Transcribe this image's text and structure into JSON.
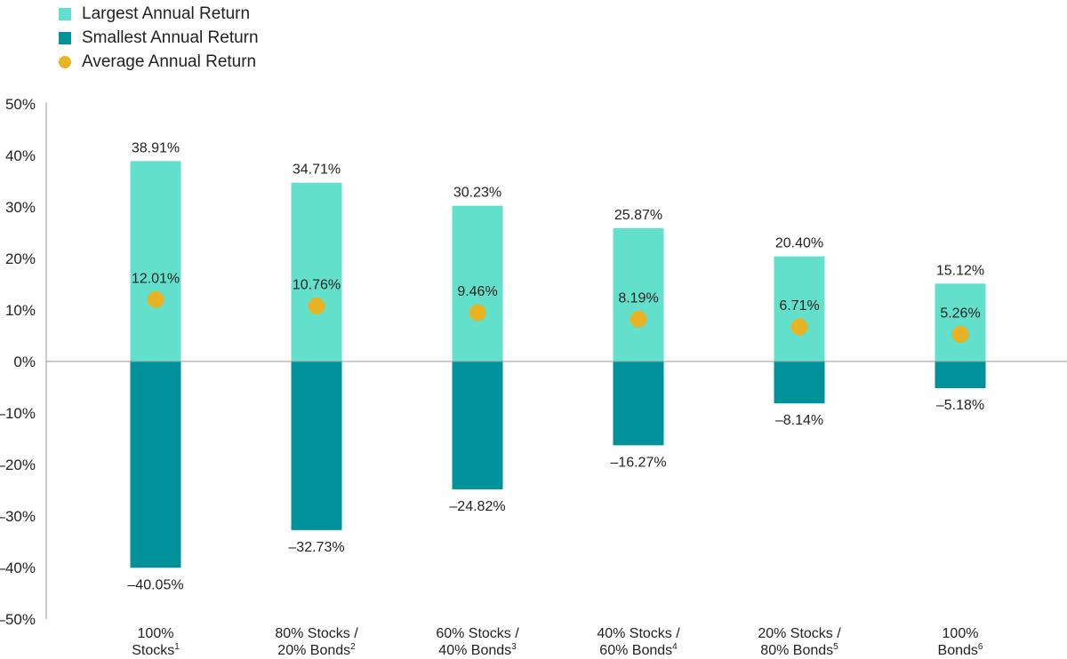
{
  "legend": {
    "largest_label": "Largest Annual Return",
    "smallest_label": "Smallest Annual Return",
    "average_label": "Average Annual Return"
  },
  "colors": {
    "largest": "#62e0cb",
    "smallest": "#00929b",
    "average": "#e8b324",
    "axis": "#999999"
  },
  "chart_data": {
    "type": "bar",
    "ylim": [
      -50,
      50
    ],
    "yticks": [
      50,
      40,
      30,
      20,
      10,
      0,
      -10,
      -20,
      -30,
      -40,
      -50
    ],
    "ytick_labels": [
      "50%",
      "40%",
      "30%",
      "20%",
      "10%",
      "0%",
      "–10%",
      "–20%",
      "–30%",
      "–40%",
      "–50%"
    ],
    "categories": [
      {
        "line1": "100%",
        "line2": "Stocks",
        "sup": "1"
      },
      {
        "line1": "80% Stocks /",
        "line2": "20% Bonds",
        "sup": "2"
      },
      {
        "line1": "60% Stocks /",
        "line2": "40% Bonds",
        "sup": "3"
      },
      {
        "line1": "40% Stocks /",
        "line2": "60% Bonds",
        "sup": "4"
      },
      {
        "line1": "20% Stocks /",
        "line2": "80% Bonds",
        "sup": "5"
      },
      {
        "line1": "100%",
        "line2": "Bonds",
        "sup": "6"
      }
    ],
    "series": [
      {
        "name": "Largest Annual Return",
        "values": [
          38.91,
          34.71,
          30.23,
          25.87,
          20.4,
          15.12
        ],
        "labels": [
          "38.91%",
          "34.71%",
          "30.23%",
          "25.87%",
          "20.40%",
          "15.12%"
        ]
      },
      {
        "name": "Smallest Annual Return",
        "values": [
          -40.05,
          -32.73,
          -24.82,
          -16.27,
          -8.14,
          -5.18
        ],
        "labels": [
          "–40.05%",
          "–32.73%",
          "–24.82%",
          "–16.27%",
          "–8.14%",
          "–5.18%"
        ]
      },
      {
        "name": "Average Annual Return",
        "values": [
          12.01,
          10.76,
          9.46,
          8.19,
          6.71,
          5.26
        ],
        "labels": [
          "12.01%",
          "10.76%",
          "9.46%",
          "8.19%",
          "6.71%",
          "5.26%"
        ]
      }
    ]
  }
}
